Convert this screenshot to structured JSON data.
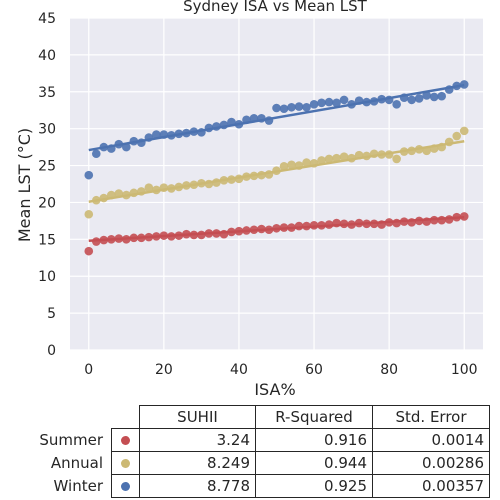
{
  "chart_data": {
    "type": "scatter",
    "title": "Sydney ISA vs Mean LST",
    "xlabel": "ISA%",
    "ylabel": "Mean LST (°C)",
    "xlim": [
      -5,
      105
    ],
    "ylim": [
      0,
      45
    ],
    "xticks": [
      "0",
      "20",
      "40",
      "60",
      "80",
      "100"
    ],
    "yticks": [
      "0",
      "5",
      "10",
      "15",
      "20",
      "25",
      "30",
      "35",
      "40",
      "45"
    ],
    "grid": true,
    "background": "#eaeaf2",
    "series": [
      {
        "name": "Summer",
        "color": "#c44e52",
        "fit": {
          "x": [
            0,
            100
          ],
          "y": [
            14.8,
            18.0
          ]
        },
        "points": [
          [
            0,
            13.4
          ],
          [
            2,
            14.7
          ],
          [
            4,
            14.9
          ],
          [
            6,
            15.0
          ],
          [
            8,
            15.1
          ],
          [
            10,
            15.0
          ],
          [
            12,
            15.2
          ],
          [
            14,
            15.2
          ],
          [
            16,
            15.3
          ],
          [
            18,
            15.4
          ],
          [
            20,
            15.5
          ],
          [
            22,
            15.4
          ],
          [
            24,
            15.5
          ],
          [
            26,
            15.7
          ],
          [
            28,
            15.6
          ],
          [
            30,
            15.6
          ],
          [
            32,
            15.8
          ],
          [
            34,
            15.8
          ],
          [
            36,
            15.7
          ],
          [
            38,
            16.0
          ],
          [
            40,
            16.1
          ],
          [
            42,
            16.2
          ],
          [
            44,
            16.3
          ],
          [
            46,
            16.4
          ],
          [
            48,
            16.3
          ],
          [
            50,
            16.5
          ],
          [
            52,
            16.6
          ],
          [
            54,
            16.6
          ],
          [
            56,
            16.8
          ],
          [
            58,
            16.8
          ],
          [
            60,
            16.9
          ],
          [
            62,
            16.9
          ],
          [
            64,
            17.0
          ],
          [
            66,
            17.2
          ],
          [
            68,
            17.1
          ],
          [
            70,
            17.0
          ],
          [
            72,
            17.2
          ],
          [
            74,
            17.1
          ],
          [
            76,
            17.1
          ],
          [
            78,
            17.0
          ],
          [
            80,
            17.3
          ],
          [
            82,
            17.2
          ],
          [
            84,
            17.4
          ],
          [
            86,
            17.3
          ],
          [
            88,
            17.5
          ],
          [
            90,
            17.4
          ],
          [
            92,
            17.6
          ],
          [
            94,
            17.6
          ],
          [
            96,
            17.7
          ],
          [
            98,
            18.0
          ],
          [
            100,
            18.1
          ]
        ]
      },
      {
        "name": "Annual",
        "color": "#ccb974",
        "fit": {
          "x": [
            0,
            100
          ],
          "y": [
            20.1,
            28.3
          ]
        },
        "points": [
          [
            0,
            18.4
          ],
          [
            2,
            20.3
          ],
          [
            4,
            20.6
          ],
          [
            6,
            21.0
          ],
          [
            8,
            21.2
          ],
          [
            10,
            21.0
          ],
          [
            12,
            21.3
          ],
          [
            14,
            21.5
          ],
          [
            16,
            22.0
          ],
          [
            18,
            21.7
          ],
          [
            20,
            22.0
          ],
          [
            22,
            21.9
          ],
          [
            24,
            22.1
          ],
          [
            26,
            22.3
          ],
          [
            28,
            22.4
          ],
          [
            30,
            22.6
          ],
          [
            32,
            22.5
          ],
          [
            34,
            22.7
          ],
          [
            36,
            23.0
          ],
          [
            38,
            23.1
          ],
          [
            40,
            23.2
          ],
          [
            42,
            23.5
          ],
          [
            44,
            23.6
          ],
          [
            46,
            23.7
          ],
          [
            48,
            23.8
          ],
          [
            50,
            24.3
          ],
          [
            52,
            24.9
          ],
          [
            54,
            25.1
          ],
          [
            56,
            25.0
          ],
          [
            58,
            25.4
          ],
          [
            60,
            25.3
          ],
          [
            62,
            25.7
          ],
          [
            64,
            25.9
          ],
          [
            66,
            26.0
          ],
          [
            68,
            26.2
          ],
          [
            70,
            26.0
          ],
          [
            72,
            26.4
          ],
          [
            74,
            26.3
          ],
          [
            76,
            26.6
          ],
          [
            78,
            26.5
          ],
          [
            80,
            26.5
          ],
          [
            82,
            25.9
          ],
          [
            84,
            26.9
          ],
          [
            86,
            27.0
          ],
          [
            88,
            27.2
          ],
          [
            90,
            27.0
          ],
          [
            92,
            27.3
          ],
          [
            94,
            27.5
          ],
          [
            96,
            28.2
          ],
          [
            98,
            29.0
          ],
          [
            100,
            29.7
          ]
        ]
      },
      {
        "name": "Winter",
        "color": "#4c72b0",
        "fit": {
          "x": [
            0,
            100
          ],
          "y": [
            27.1,
            35.9
          ]
        },
        "points": [
          [
            0,
            23.7
          ],
          [
            2,
            26.6
          ],
          [
            4,
            27.5
          ],
          [
            6,
            27.3
          ],
          [
            8,
            27.9
          ],
          [
            10,
            27.5
          ],
          [
            12,
            28.3
          ],
          [
            14,
            28.1
          ],
          [
            16,
            28.8
          ],
          [
            18,
            29.2
          ],
          [
            20,
            29.2
          ],
          [
            22,
            29.1
          ],
          [
            24,
            29.3
          ],
          [
            26,
            29.4
          ],
          [
            28,
            29.6
          ],
          [
            30,
            29.5
          ],
          [
            32,
            30.1
          ],
          [
            34,
            30.3
          ],
          [
            36,
            30.5
          ],
          [
            38,
            30.9
          ],
          [
            40,
            30.6
          ],
          [
            42,
            31.2
          ],
          [
            44,
            31.4
          ],
          [
            46,
            31.4
          ],
          [
            48,
            31.1
          ],
          [
            50,
            32.8
          ],
          [
            52,
            32.7
          ],
          [
            54,
            32.9
          ],
          [
            56,
            33.0
          ],
          [
            58,
            32.9
          ],
          [
            60,
            33.3
          ],
          [
            62,
            33.5
          ],
          [
            64,
            33.6
          ],
          [
            66,
            33.5
          ],
          [
            68,
            33.9
          ],
          [
            70,
            33.3
          ],
          [
            72,
            33.8
          ],
          [
            74,
            33.6
          ],
          [
            76,
            33.7
          ],
          [
            78,
            34.0
          ],
          [
            80,
            33.9
          ],
          [
            82,
            33.3
          ],
          [
            84,
            34.2
          ],
          [
            86,
            33.9
          ],
          [
            88,
            34.1
          ],
          [
            90,
            34.5
          ],
          [
            92,
            34.3
          ],
          [
            94,
            34.4
          ],
          [
            96,
            35.3
          ],
          [
            98,
            35.8
          ],
          [
            100,
            36.0
          ]
        ]
      }
    ]
  },
  "table": {
    "headers": [
      "SUHII",
      "R-Squared",
      "Std. Error"
    ],
    "rows": [
      {
        "label": "Summer",
        "color": "#c44e52",
        "suhii": "3.24",
        "r2": "0.916",
        "se": "0.0014"
      },
      {
        "label": "Annual",
        "color": "#ccb974",
        "suhii": "8.249",
        "r2": "0.944",
        "se": "0.00286"
      },
      {
        "label": "Winter",
        "color": "#4c72b0",
        "suhii": "8.778",
        "r2": "0.925",
        "se": "0.00357"
      }
    ]
  }
}
